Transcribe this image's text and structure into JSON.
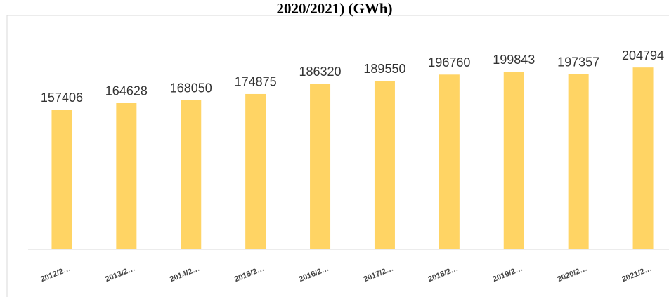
{
  "chart_data": {
    "type": "bar",
    "title": "2020/2021)  (GWh)",
    "categories": [
      "2012/2…",
      "2013/2…",
      "2014/2…",
      "2015/2…",
      "2016/2…",
      "2017/2…",
      "2018/2…",
      "2019/2…",
      "2020/2…",
      "2021/2…"
    ],
    "values": [
      157406,
      164628,
      168050,
      174875,
      186320,
      189550,
      196760,
      199843,
      197357,
      204794
    ],
    "color": "#ffd464",
    "ylim": [
      0,
      250000
    ]
  }
}
